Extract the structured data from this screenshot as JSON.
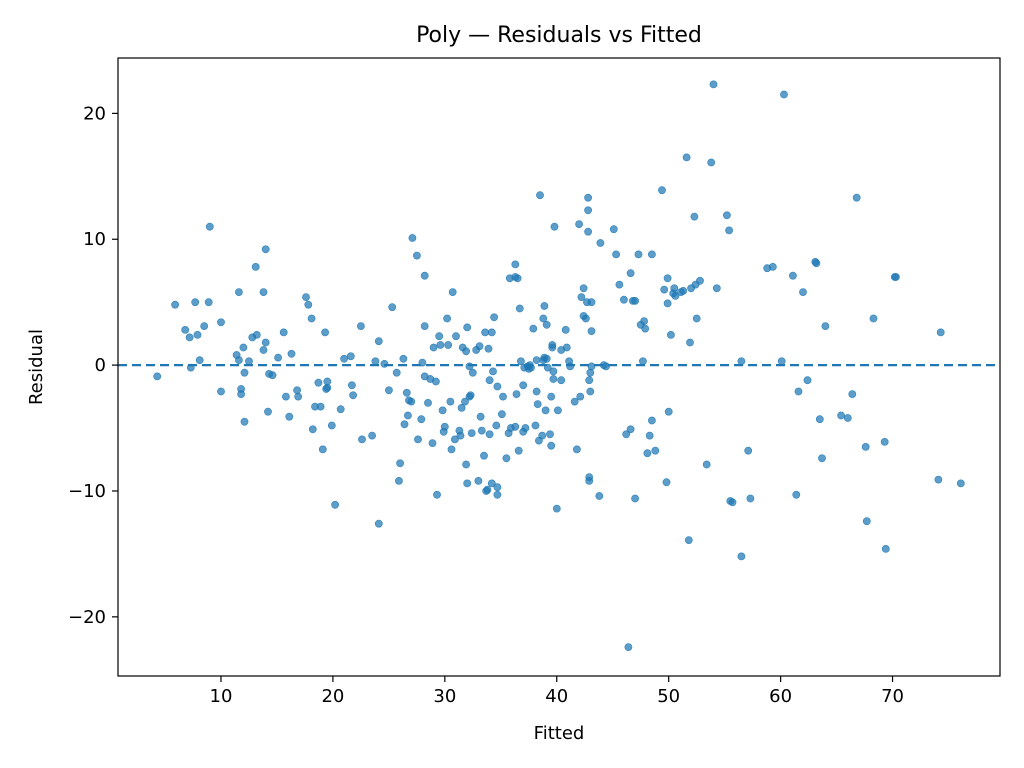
{
  "chart_data": {
    "type": "scatter",
    "title": "Poly — Residuals vs Fitted",
    "xlabel": "Fitted",
    "ylabel": "Residual",
    "xlim": [
      0.8,
      79.6
    ],
    "ylim": [
      -24.7,
      24.4
    ],
    "xticks": [
      10,
      20,
      30,
      40,
      50,
      60,
      70
    ],
    "yticks": [
      -20,
      -10,
      0,
      10,
      20
    ],
    "xtick_labels": [
      "10",
      "20",
      "30",
      "40",
      "50",
      "60",
      "70"
    ],
    "ytick_labels": [
      "−20",
      "−10",
      "0",
      "10",
      "20"
    ],
    "reference_line": {
      "y": 0,
      "style": "dashed"
    },
    "grid": false,
    "marker_color": "#1f77b4",
    "series": [
      {
        "points": [
          [
            4.3,
            -0.9
          ],
          [
            5.9,
            4.8
          ],
          [
            6.8,
            2.8
          ],
          [
            7.2,
            2.2
          ],
          [
            7.3,
            -0.2
          ],
          [
            7.7,
            5.0
          ],
          [
            7.9,
            2.4
          ],
          [
            8.1,
            0.4
          ],
          [
            8.5,
            3.1
          ],
          [
            8.9,
            5.0
          ],
          [
            9.0,
            11.0
          ],
          [
            10.0,
            3.4
          ],
          [
            10.0,
            -2.1
          ],
          [
            11.4,
            0.8
          ],
          [
            11.6,
            5.8
          ],
          [
            11.6,
            0.4
          ],
          [
            11.8,
            -1.9
          ],
          [
            11.8,
            -2.3
          ],
          [
            12.0,
            1.4
          ],
          [
            12.1,
            -0.6
          ],
          [
            12.1,
            -4.5
          ],
          [
            12.5,
            0.3
          ],
          [
            12.8,
            2.2
          ],
          [
            13.1,
            7.8
          ],
          [
            13.2,
            2.4
          ],
          [
            13.8,
            5.8
          ],
          [
            13.8,
            1.2
          ],
          [
            14.0,
            9.2
          ],
          [
            14.0,
            1.8
          ],
          [
            14.2,
            -3.7
          ],
          [
            14.3,
            -0.7
          ],
          [
            14.6,
            -0.8
          ],
          [
            15.1,
            0.6
          ],
          [
            15.6,
            2.6
          ],
          [
            15.8,
            -2.5
          ],
          [
            16.1,
            -4.1
          ],
          [
            16.3,
            0.9
          ],
          [
            16.8,
            -2.0
          ],
          [
            16.9,
            -2.5
          ],
          [
            17.6,
            5.4
          ],
          [
            17.8,
            4.8
          ],
          [
            18.1,
            3.7
          ],
          [
            18.2,
            -5.1
          ],
          [
            18.4,
            -3.3
          ],
          [
            18.7,
            -1.4
          ],
          [
            18.9,
            -3.3
          ],
          [
            19.1,
            -6.7
          ],
          [
            19.3,
            2.6
          ],
          [
            19.4,
            -1.9
          ],
          [
            19.5,
            -1.3
          ],
          [
            19.5,
            -1.8
          ],
          [
            19.9,
            -4.8
          ],
          [
            20.2,
            -11.1
          ],
          [
            20.7,
            -3.5
          ],
          [
            21.0,
            0.5
          ],
          [
            21.6,
            0.7
          ],
          [
            21.7,
            -1.6
          ],
          [
            21.8,
            -2.4
          ],
          [
            22.5,
            3.1
          ],
          [
            22.6,
            -5.9
          ],
          [
            23.5,
            -5.6
          ],
          [
            23.8,
            0.3
          ],
          [
            24.1,
            -12.6
          ],
          [
            24.1,
            1.9
          ],
          [
            24.6,
            0.1
          ],
          [
            25.0,
            -2.0
          ],
          [
            25.3,
            4.6
          ],
          [
            25.7,
            -0.6
          ],
          [
            25.9,
            -9.2
          ],
          [
            26.0,
            -7.8
          ],
          [
            26.3,
            0.5
          ],
          [
            26.4,
            -4.7
          ],
          [
            26.6,
            -2.2
          ],
          [
            26.7,
            -4.0
          ],
          [
            26.8,
            -2.8
          ],
          [
            27.0,
            -2.9
          ],
          [
            27.1,
            10.1
          ],
          [
            27.5,
            8.7
          ],
          [
            27.6,
            -5.9
          ],
          [
            27.9,
            -4.3
          ],
          [
            28.0,
            0.2
          ],
          [
            28.2,
            7.1
          ],
          [
            28.2,
            3.1
          ],
          [
            28.2,
            -0.9
          ],
          [
            28.5,
            -3.0
          ],
          [
            28.7,
            -1.1
          ],
          [
            28.9,
            -6.2
          ],
          [
            29.0,
            1.4
          ],
          [
            29.2,
            -1.3
          ],
          [
            29.3,
            -10.3
          ],
          [
            29.5,
            2.3
          ],
          [
            29.6,
            1.6
          ],
          [
            29.8,
            -3.6
          ],
          [
            29.9,
            -5.3
          ],
          [
            30.0,
            -4.9
          ],
          [
            30.2,
            3.7
          ],
          [
            30.3,
            1.6
          ],
          [
            30.5,
            -2.9
          ],
          [
            30.6,
            -6.7
          ],
          [
            30.7,
            5.8
          ],
          [
            30.9,
            -5.9
          ],
          [
            31.0,
            2.3
          ],
          [
            31.3,
            -5.2
          ],
          [
            31.4,
            -5.6
          ],
          [
            31.5,
            -3.4
          ],
          [
            31.6,
            1.4
          ],
          [
            31.8,
            -2.9
          ],
          [
            31.9,
            -7.9
          ],
          [
            31.9,
            1.1
          ],
          [
            32.0,
            3.0
          ],
          [
            32.0,
            -9.4
          ],
          [
            32.2,
            -2.5
          ],
          [
            32.2,
            -0.1
          ],
          [
            32.3,
            -2.4
          ],
          [
            32.4,
            -5.4
          ],
          [
            32.5,
            -0.6
          ],
          [
            32.8,
            1.2
          ],
          [
            33.0,
            -9.2
          ],
          [
            33.1,
            1.5
          ],
          [
            33.2,
            -4.1
          ],
          [
            33.3,
            -5.2
          ],
          [
            33.5,
            -7.2
          ],
          [
            33.6,
            2.6
          ],
          [
            33.7,
            -10.0
          ],
          [
            33.8,
            -9.9
          ],
          [
            33.9,
            1.3
          ],
          [
            34.0,
            -1.2
          ],
          [
            34.0,
            -5.5
          ],
          [
            34.2,
            -9.4
          ],
          [
            34.2,
            2.6
          ],
          [
            34.3,
            -0.5
          ],
          [
            34.4,
            3.8
          ],
          [
            34.6,
            -4.8
          ],
          [
            34.7,
            -9.7
          ],
          [
            34.7,
            -1.7
          ],
          [
            34.7,
            -10.3
          ],
          [
            35.1,
            -3.9
          ],
          [
            35.2,
            -2.5
          ],
          [
            35.5,
            -7.4
          ],
          [
            35.7,
            -5.4
          ],
          [
            35.8,
            6.9
          ],
          [
            35.9,
            -5.0
          ],
          [
            36.3,
            -4.9
          ],
          [
            36.3,
            8.0
          ],
          [
            36.3,
            7.0
          ],
          [
            36.4,
            -2.3
          ],
          [
            36.5,
            6.9
          ],
          [
            36.6,
            -6.8
          ],
          [
            36.7,
            4.5
          ],
          [
            36.8,
            0.3
          ],
          [
            37.0,
            -5.3
          ],
          [
            37.0,
            -1.6
          ],
          [
            37.1,
            -0.2
          ],
          [
            37.2,
            -5.0
          ],
          [
            37.4,
            -0.1
          ],
          [
            37.5,
            -0.3
          ],
          [
            37.6,
            0.0
          ],
          [
            37.7,
            -0.2
          ],
          [
            37.9,
            2.9
          ],
          [
            38.1,
            -4.8
          ],
          [
            38.2,
            0.4
          ],
          [
            38.2,
            -2.1
          ],
          [
            38.3,
            -3.1
          ],
          [
            38.4,
            -6.0
          ],
          [
            38.5,
            13.5
          ],
          [
            38.7,
            -5.6
          ],
          [
            38.8,
            0.4
          ],
          [
            38.8,
            3.7
          ],
          [
            38.9,
            4.7
          ],
          [
            38.9,
            0.6
          ],
          [
            39.0,
            -3.6
          ],
          [
            39.1,
            0.5
          ],
          [
            39.1,
            3.2
          ],
          [
            39.2,
            -0.2
          ],
          [
            39.4,
            -5.5
          ],
          [
            39.5,
            -2.5
          ],
          [
            39.5,
            -6.4
          ],
          [
            39.6,
            1.6
          ],
          [
            39.6,
            1.4
          ],
          [
            39.7,
            -0.5
          ],
          [
            39.7,
            -1.1
          ],
          [
            39.8,
            11.0
          ],
          [
            40.0,
            -11.4
          ],
          [
            40.1,
            -3.6
          ],
          [
            40.4,
            -1.2
          ],
          [
            40.4,
            1.2
          ],
          [
            40.8,
            2.8
          ],
          [
            40.9,
            1.4
          ],
          [
            41.1,
            0.3
          ],
          [
            41.2,
            -0.1
          ],
          [
            41.6,
            -2.9
          ],
          [
            41.8,
            -6.7
          ],
          [
            42.0,
            11.2
          ],
          [
            42.1,
            -2.5
          ],
          [
            42.2,
            5.4
          ],
          [
            42.4,
            3.9
          ],
          [
            42.4,
            6.1
          ],
          [
            42.6,
            3.7
          ],
          [
            42.7,
            5.0
          ],
          [
            42.8,
            10.6
          ],
          [
            42.8,
            12.3
          ],
          [
            42.8,
            13.3
          ],
          [
            42.9,
            -9.2
          ],
          [
            42.9,
            -8.9
          ],
          [
            42.9,
            -1.2
          ],
          [
            43.0,
            -0.6
          ],
          [
            43.0,
            -2.1
          ],
          [
            43.1,
            -0.1
          ],
          [
            43.1,
            5.0
          ],
          [
            43.1,
            2.7
          ],
          [
            43.8,
            -10.4
          ],
          [
            43.9,
            9.7
          ],
          [
            44.2,
            0.0
          ],
          [
            44.4,
            -0.1
          ],
          [
            45.1,
            10.8
          ],
          [
            45.3,
            8.8
          ],
          [
            45.6,
            6.4
          ],
          [
            46.0,
            5.2
          ],
          [
            46.2,
            -5.5
          ],
          [
            46.4,
            -22.4
          ],
          [
            46.6,
            7.3
          ],
          [
            46.6,
            -5.1
          ],
          [
            46.8,
            5.1
          ],
          [
            47.0,
            5.1
          ],
          [
            47.0,
            -10.6
          ],
          [
            47.3,
            8.8
          ],
          [
            47.5,
            3.2
          ],
          [
            47.7,
            0.3
          ],
          [
            47.8,
            3.5
          ],
          [
            47.9,
            2.9
          ],
          [
            48.1,
            -7.0
          ],
          [
            48.3,
            -5.6
          ],
          [
            48.5,
            8.8
          ],
          [
            48.5,
            -4.4
          ],
          [
            48.8,
            -6.8
          ],
          [
            49.4,
            13.9
          ],
          [
            49.6,
            6.0
          ],
          [
            49.8,
            -9.3
          ],
          [
            49.9,
            4.9
          ],
          [
            49.9,
            6.9
          ],
          [
            50.0,
            -3.7
          ],
          [
            50.2,
            2.4
          ],
          [
            50.4,
            5.7
          ],
          [
            50.5,
            6.1
          ],
          [
            50.6,
            5.5
          ],
          [
            51.1,
            5.8
          ],
          [
            51.3,
            5.9
          ],
          [
            51.6,
            16.5
          ],
          [
            51.8,
            -13.9
          ],
          [
            51.9,
            1.8
          ],
          [
            52.0,
            6.1
          ],
          [
            52.3,
            11.8
          ],
          [
            52.4,
            6.4
          ],
          [
            52.5,
            3.7
          ],
          [
            52.8,
            6.7
          ],
          [
            53.4,
            -7.9
          ],
          [
            53.8,
            16.1
          ],
          [
            54.0,
            22.3
          ],
          [
            54.3,
            6.1
          ],
          [
            55.2,
            11.9
          ],
          [
            55.4,
            10.7
          ],
          [
            55.5,
            -10.8
          ],
          [
            55.7,
            -10.9
          ],
          [
            56.5,
            -15.2
          ],
          [
            56.5,
            0.3
          ],
          [
            57.1,
            -6.8
          ],
          [
            57.3,
            -10.6
          ],
          [
            58.8,
            7.7
          ],
          [
            59.3,
            7.8
          ],
          [
            60.1,
            0.3
          ],
          [
            60.3,
            21.5
          ],
          [
            61.1,
            7.1
          ],
          [
            61.4,
            -10.3
          ],
          [
            61.6,
            -2.1
          ],
          [
            62.0,
            5.8
          ],
          [
            62.4,
            -1.2
          ],
          [
            63.1,
            8.2
          ],
          [
            63.2,
            8.1
          ],
          [
            63.5,
            -4.3
          ],
          [
            63.7,
            -7.4
          ],
          [
            64.0,
            3.1
          ],
          [
            65.4,
            -4.0
          ],
          [
            66.0,
            -4.2
          ],
          [
            66.4,
            -2.3
          ],
          [
            66.8,
            13.3
          ],
          [
            67.6,
            -6.5
          ],
          [
            67.7,
            -12.4
          ],
          [
            68.3,
            3.7
          ],
          [
            69.3,
            -6.1
          ],
          [
            69.4,
            -14.6
          ],
          [
            70.2,
            7.0
          ],
          [
            70.3,
            7.0
          ],
          [
            74.1,
            -9.1
          ],
          [
            74.3,
            2.6
          ],
          [
            76.1,
            -9.4
          ]
        ]
      }
    ]
  }
}
